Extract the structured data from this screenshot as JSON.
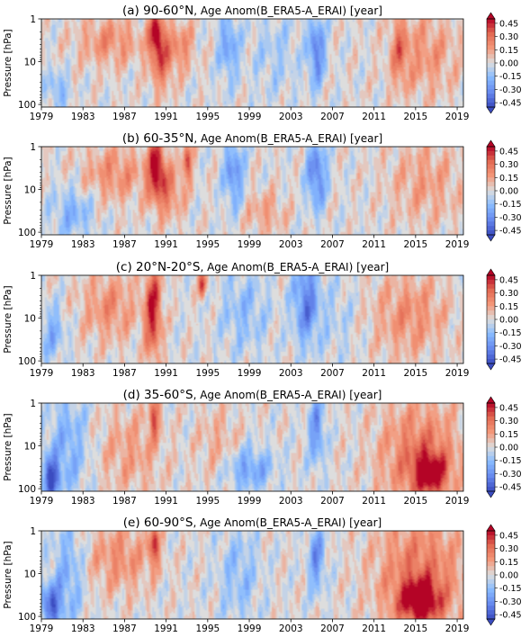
{
  "chart_data": [
    {
      "type": "heatmap",
      "title_prefix": "(a) 90-60°N",
      "title_suffix": ", Age Anom(B_ERA5-A_ERAI) [year]",
      "ylabel": "Pressure [hPa]",
      "y_scale": "log",
      "y_ticks": [
        "1",
        "10",
        "100"
      ],
      "x_ticks": [
        "1979",
        "1983",
        "1987",
        "1991",
        "1995",
        "1999",
        "2003",
        "2007",
        "2011",
        "2015",
        "2019"
      ],
      "xlim": [
        1979,
        2019.6
      ],
      "ylim_hpa": [
        115,
        1
      ],
      "features": [
        {
          "x": 1985.5,
          "w": 4.0,
          "y": 0.25,
          "h": 0.35,
          "v": 0.2
        },
        {
          "x": 1990.0,
          "w": 0.8,
          "y": 0.15,
          "h": 0.3,
          "v": 0.45
        },
        {
          "x": 1990.5,
          "w": 1.5,
          "y": 0.45,
          "h": 0.45,
          "v": 0.3
        },
        {
          "x": 1992.5,
          "w": 1.5,
          "y": 0.3,
          "h": 0.35,
          "v": 0.2
        },
        {
          "x": 1980.5,
          "w": 1.2,
          "y": 0.8,
          "h": 0.25,
          "v": -0.2
        },
        {
          "x": 1997.0,
          "w": 1.2,
          "y": 0.3,
          "h": 0.5,
          "v": -0.25
        },
        {
          "x": 2005.5,
          "w": 1.0,
          "y": 0.35,
          "h": 0.5,
          "v": -0.35
        },
        {
          "x": 2001.5,
          "w": 3.0,
          "y": 0.4,
          "h": 0.6,
          "v": -0.1
        },
        {
          "x": 2016.0,
          "w": 4.0,
          "y": 0.4,
          "h": 0.6,
          "v": 0.18
        },
        {
          "x": 2013.5,
          "w": 1.0,
          "y": 0.35,
          "h": 0.5,
          "v": 0.22
        }
      ]
    },
    {
      "type": "heatmap",
      "title_prefix": "(b) 60-35°N",
      "title_suffix": ", Age Anom(B_ERA5-A_ERAI) [year]",
      "ylabel": "Pressure [hPa]",
      "y_scale": "log",
      "y_ticks": [
        "1",
        "10",
        "100"
      ],
      "x_ticks": [
        "1979",
        "1983",
        "1987",
        "1991",
        "1995",
        "1999",
        "2003",
        "2007",
        "2011",
        "2015",
        "2019"
      ],
      "xlim": [
        1979,
        2019.6
      ],
      "ylim_hpa": [
        115,
        1
      ],
      "features": [
        {
          "x": 1986.0,
          "w": 4.0,
          "y": 0.3,
          "h": 0.4,
          "v": 0.2
        },
        {
          "x": 1990.0,
          "w": 1.0,
          "y": 0.2,
          "h": 0.4,
          "v": 0.45
        },
        {
          "x": 1993.0,
          "w": 0.6,
          "y": 0.15,
          "h": 0.3,
          "v": 0.35
        },
        {
          "x": 1991.0,
          "w": 2.0,
          "y": 0.5,
          "h": 0.4,
          "v": 0.25
        },
        {
          "x": 1982.0,
          "w": 2.5,
          "y": 0.75,
          "h": 0.35,
          "v": -0.2
        },
        {
          "x": 1997.5,
          "w": 1.2,
          "y": 0.3,
          "h": 0.5,
          "v": -0.3
        },
        {
          "x": 2005.5,
          "w": 1.2,
          "y": 0.3,
          "h": 0.5,
          "v": -0.35
        },
        {
          "x": 2000.5,
          "w": 2.5,
          "y": 0.75,
          "h": 0.3,
          "v": 0.15
        },
        {
          "x": 2016.0,
          "w": 4.5,
          "y": 0.4,
          "h": 0.6,
          "v": 0.15
        }
      ]
    },
    {
      "type": "heatmap",
      "title_prefix": "(c) 20°N-20°S",
      "title_suffix": ", Age Anom(B_ERA5-A_ERAI) [year]",
      "ylabel": "Pressure [hPa]",
      "y_scale": "log",
      "y_ticks": [
        "1",
        "10",
        "100"
      ],
      "x_ticks": [
        "1979",
        "1983",
        "1987",
        "1991",
        "1995",
        "1999",
        "2003",
        "2007",
        "2011",
        "2015",
        "2019"
      ],
      "xlim": [
        1979,
        2019.6
      ],
      "ylim_hpa": [
        115,
        1
      ],
      "features": [
        {
          "x": 1985.5,
          "w": 3.5,
          "y": 0.35,
          "h": 0.5,
          "v": 0.2
        },
        {
          "x": 1989.7,
          "w": 1.0,
          "y": 0.4,
          "h": 0.7,
          "v": 0.45
        },
        {
          "x": 1994.5,
          "w": 0.5,
          "y": 0.1,
          "h": 0.2,
          "v": 0.4
        },
        {
          "x": 1980.0,
          "w": 1.5,
          "y": 0.65,
          "h": 0.4,
          "v": -0.2
        },
        {
          "x": 1998.5,
          "w": 3.0,
          "y": 0.4,
          "h": 0.6,
          "v": -0.15
        },
        {
          "x": 2004.5,
          "w": 1.6,
          "y": 0.3,
          "h": 0.6,
          "v": -0.35
        },
        {
          "x": 2014.5,
          "w": 4.5,
          "y": 0.45,
          "h": 0.6,
          "v": 0.2
        },
        {
          "x": 2007.5,
          "w": 2.5,
          "y": 0.5,
          "h": 0.6,
          "v": -0.08
        }
      ]
    },
    {
      "type": "heatmap",
      "title_prefix": "(d) 35-60°S",
      "title_suffix": ", Age Anom(B_ERA5-A_ERAI) [year]",
      "ylabel": "Pressure [hPa]",
      "y_scale": "log",
      "y_ticks": [
        "1",
        "10",
        "100"
      ],
      "x_ticks": [
        "1979",
        "1983",
        "1987",
        "1991",
        "1995",
        "1999",
        "2003",
        "2007",
        "2011",
        "2015",
        "2019"
      ],
      "xlim": [
        1979,
        2019.6
      ],
      "ylim_hpa": [
        115,
        1
      ],
      "features": [
        {
          "x": 1979.8,
          "w": 1.0,
          "y": 0.85,
          "h": 0.3,
          "v": -0.45
        },
        {
          "x": 1981.5,
          "w": 2.5,
          "y": 0.5,
          "h": 0.8,
          "v": -0.2
        },
        {
          "x": 1987.5,
          "w": 4.0,
          "y": 0.55,
          "h": 0.6,
          "v": 0.15
        },
        {
          "x": 1989.8,
          "w": 0.6,
          "y": 0.15,
          "h": 0.3,
          "v": 0.35
        },
        {
          "x": 1999.0,
          "w": 3.0,
          "y": 0.75,
          "h": 0.3,
          "v": -0.25
        },
        {
          "x": 1996.0,
          "w": 2.5,
          "y": 0.45,
          "h": 0.5,
          "v": 0.12
        },
        {
          "x": 2005.5,
          "w": 1.0,
          "y": 0.3,
          "h": 0.5,
          "v": -0.3
        },
        {
          "x": 2015.5,
          "w": 5.0,
          "y": 0.6,
          "h": 0.8,
          "v": 0.28
        },
        {
          "x": 2016.5,
          "w": 2.0,
          "y": 0.8,
          "h": 0.3,
          "v": 0.4
        }
      ]
    },
    {
      "type": "heatmap",
      "title_prefix": "(e) 60-90°S",
      "title_suffix": ", Age Anom(B_ERA5-A_ERAI) [year]",
      "ylabel": "Pressure [hPa]",
      "y_scale": "log",
      "y_ticks": [
        "1",
        "10",
        "100"
      ],
      "x_ticks": [
        "1979",
        "1983",
        "1987",
        "1991",
        "1995",
        "1999",
        "2003",
        "2007",
        "2011",
        "2015",
        "2019"
      ],
      "xlim": [
        1979,
        2019.6
      ],
      "ylim_hpa": [
        115,
        1
      ],
      "features": [
        {
          "x": 1979.8,
          "w": 1.2,
          "y": 0.85,
          "h": 0.3,
          "v": -0.4
        },
        {
          "x": 1981.5,
          "w": 2.0,
          "y": 0.5,
          "h": 0.8,
          "v": -0.2
        },
        {
          "x": 1986.5,
          "w": 4.0,
          "y": 0.3,
          "h": 0.5,
          "v": 0.2
        },
        {
          "x": 1989.8,
          "w": 0.6,
          "y": 0.15,
          "h": 0.3,
          "v": 0.4
        },
        {
          "x": 1998.0,
          "w": 2.5,
          "y": 0.5,
          "h": 0.7,
          "v": -0.15
        },
        {
          "x": 2005.5,
          "w": 1.0,
          "y": 0.3,
          "h": 0.5,
          "v": -0.3
        },
        {
          "x": 2015.5,
          "w": 5.5,
          "y": 0.5,
          "h": 0.9,
          "v": 0.28
        },
        {
          "x": 2015.5,
          "w": 2.5,
          "y": 0.8,
          "h": 0.3,
          "v": 0.45
        }
      ]
    }
  ],
  "colorbar": {
    "ticks": [
      "0.45",
      "0.30",
      "0.15",
      "0.00",
      "-0.15",
      "-0.30",
      "-0.45"
    ],
    "values": [
      0.45,
      0.3,
      0.15,
      0.0,
      -0.15,
      -0.3,
      -0.45
    ],
    "range": [
      -0.5,
      0.5
    ],
    "colormap": "coolwarm",
    "colormap_stops": [
      "#3b4cc0",
      "#6688ee",
      "#88bbff",
      "#dddddd",
      "#f4987a",
      "#e26952",
      "#b40426"
    ]
  }
}
